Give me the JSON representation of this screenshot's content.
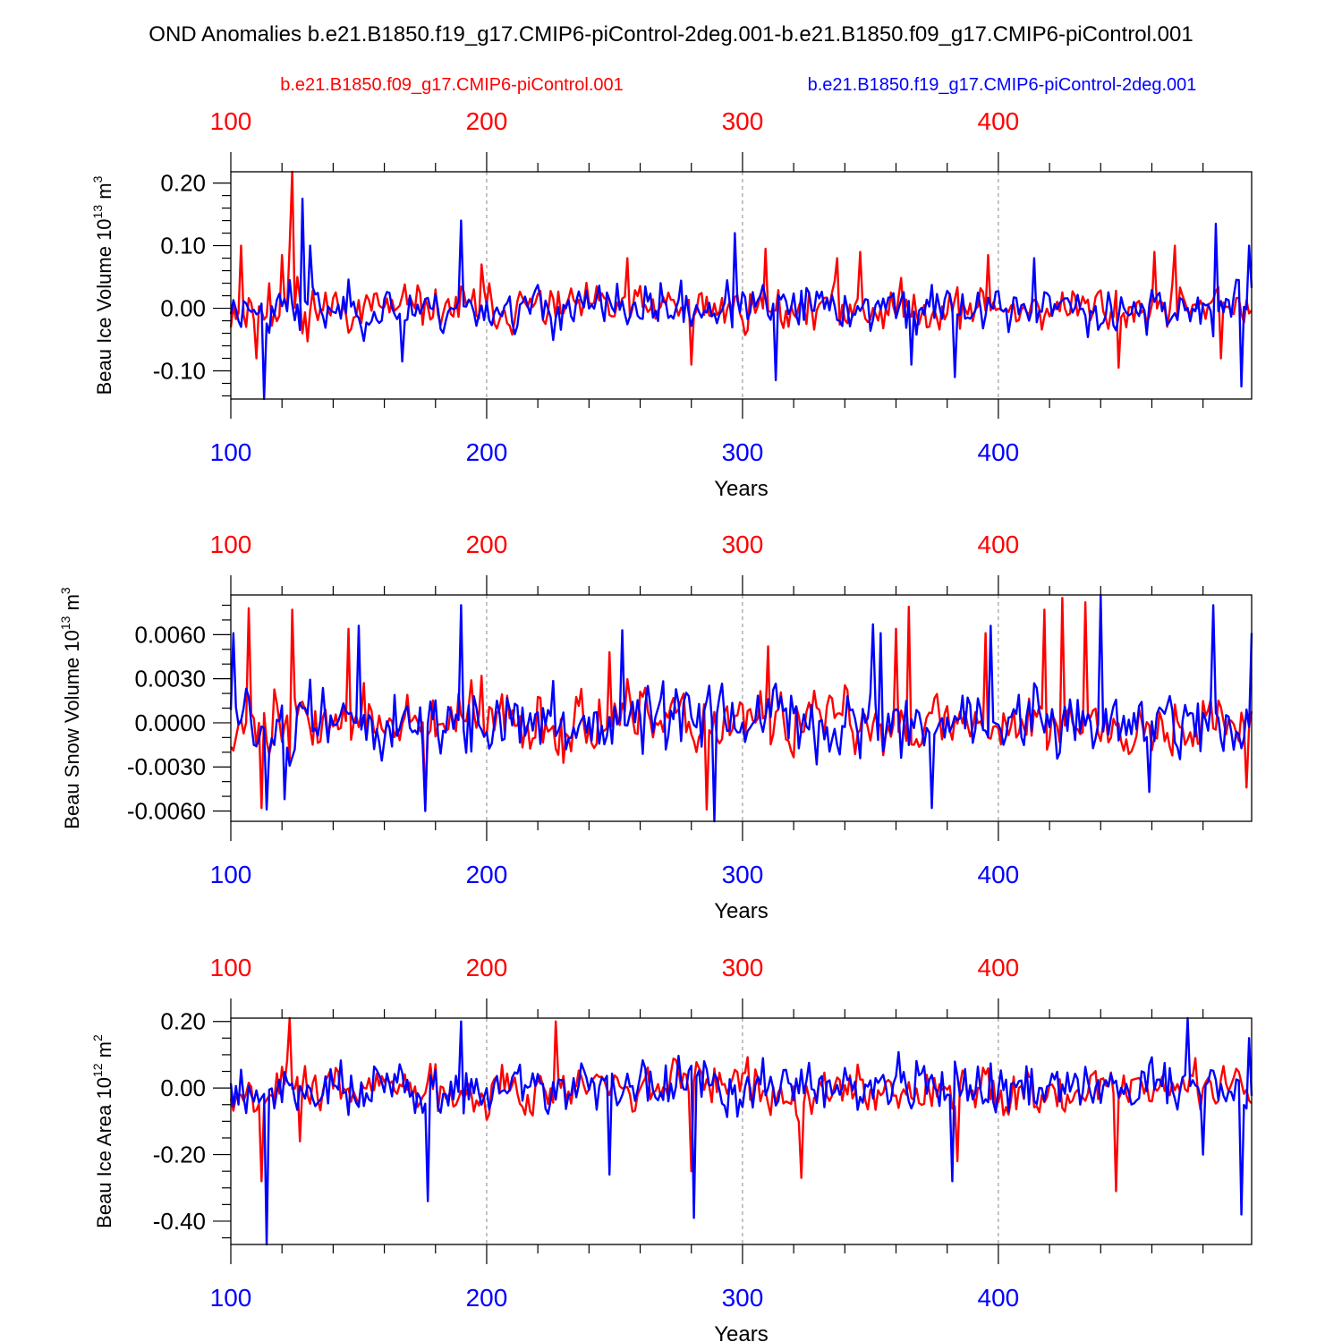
{
  "title": "OND Anomalies b.e21.B1850.f19_g17.CMIP6-piControl-2deg.001-b.e21.B1850.f09_g17.CMIP6-piControl.001",
  "legend": {
    "red_label": "b.e21.B1850.f09_g17.CMIP6-piControl.001",
    "blue_label": "b.e21.B1850.f19_g17.CMIP6-piControl-2deg.001"
  },
  "colors": {
    "red": "#ff0000",
    "blue": "#0000ff",
    "axis": "#000000",
    "grid": "#888888"
  },
  "chart_data": [
    {
      "type": "line",
      "ylabel": "Beau Ice Volume 10",
      "ylabel_exp": "13",
      "ylabel_unit": " m",
      "ylabel_unit_exp": "3",
      "xlabel": "Years",
      "xlim": [
        100,
        499
      ],
      "ylim": [
        -0.145,
        0.218
      ],
      "yticks": [
        -0.1,
        0.0,
        0.1,
        0.2
      ],
      "ytick_labels": [
        "-0.10",
        "0.00",
        "0.10",
        "0.20"
      ],
      "xticks": [
        100,
        200,
        300,
        400
      ],
      "xtick_labels": [
        "100",
        "200",
        "300",
        "400"
      ],
      "minor_x_step": 20,
      "minor_y_step": 0.02,
      "series": [
        {
          "name": "b.e21.B1850.f09_g17.CMIP6-piControl.001",
          "color": "red",
          "amp": 0.036,
          "lo": -0.1,
          "hi": 0.22,
          "seed": 11,
          "trend": "none",
          "spikes": [
            [
              104,
              0.1
            ],
            [
              110,
              -0.08
            ],
            [
              115,
              0.04
            ],
            [
              120,
              0.085
            ],
            [
              123,
              0.1
            ],
            [
              124,
              0.218
            ],
            [
              126,
              0.05
            ],
            [
              128,
              -0.04
            ],
            [
              165,
              0.0
            ],
            [
              198,
              0.07
            ],
            [
              255,
              0.08
            ],
            [
              280,
              -0.09
            ],
            [
              309,
              0.095
            ],
            [
              337,
              0.08
            ],
            [
              346,
              0.09
            ],
            [
              396,
              0.085
            ],
            [
              447,
              -0.095
            ],
            [
              461,
              0.09
            ],
            [
              469,
              0.1
            ],
            [
              487,
              -0.08
            ]
          ]
        },
        {
          "name": "b.e21.B1850.f19_g17.CMIP6-piControl-2deg.001",
          "color": "blue",
          "amp": 0.038,
          "lo": -0.145,
          "hi": 0.2,
          "seed": 23,
          "trend": "none",
          "spikes": [
            [
              113,
              -0.145
            ],
            [
              123,
              0.045
            ],
            [
              128,
              0.175
            ],
            [
              131,
              0.1
            ],
            [
              167,
              -0.085
            ],
            [
              190,
              0.14
            ],
            [
              297,
              0.12
            ],
            [
              313,
              -0.115
            ],
            [
              366,
              -0.09
            ],
            [
              383,
              -0.11
            ],
            [
              414,
              0.08
            ],
            [
              485,
              0.135
            ],
            [
              495,
              -0.125
            ],
            [
              498,
              0.1
            ]
          ]
        }
      ]
    },
    {
      "type": "line",
      "ylabel": "Beau Snow Volume 10",
      "ylabel_exp": "13",
      "ylabel_unit": " m",
      "ylabel_unit_exp": "3",
      "xlabel": "Years",
      "xlim": [
        100,
        499
      ],
      "ylim": [
        -0.0067,
        0.0087
      ],
      "yticks": [
        -0.006,
        -0.003,
        0.0,
        0.003,
        0.006
      ],
      "ytick_labels": [
        "-0.0060",
        "-0.0030",
        "0.0000",
        "0.0030",
        "0.0060"
      ],
      "xticks": [
        100,
        200,
        300,
        400
      ],
      "xtick_labels": [
        "100",
        "200",
        "300",
        "400"
      ],
      "minor_x_step": 20,
      "minor_y_step": 0.001,
      "series": [
        {
          "name": "b.e21.B1850.f09_g17.CMIP6-piControl.001",
          "color": "red",
          "amp": 0.0022,
          "lo": -0.0066,
          "hi": 0.0087,
          "seed": 37,
          "trend": "none",
          "spikes": [
            [
              107,
              0.0078
            ],
            [
              112,
              -0.0058
            ],
            [
              124,
              0.0077
            ],
            [
              146,
              0.0064
            ],
            [
              176,
              -0.0054
            ],
            [
              198,
              0.0032
            ],
            [
              248,
              0.0048
            ],
            [
              286,
              -0.0059
            ],
            [
              310,
              0.0052
            ],
            [
              360,
              0.0064
            ],
            [
              365,
              0.0079
            ],
            [
              395,
              0.0061
            ],
            [
              418,
              0.0077
            ],
            [
              425,
              0.0085
            ],
            [
              434,
              0.0082
            ],
            [
              497,
              -0.0044
            ]
          ]
        },
        {
          "name": "b.e21.B1850.f19_g17.CMIP6-piControl-2deg.001",
          "color": "blue",
          "amp": 0.0024,
          "lo": -0.0067,
          "hi": 0.0087,
          "seed": 51,
          "trend": "none",
          "spikes": [
            [
              101,
              0.0061
            ],
            [
              114,
              -0.0059
            ],
            [
              121,
              -0.0052
            ],
            [
              150,
              0.0066
            ],
            [
              176,
              -0.006
            ],
            [
              190,
              0.008
            ],
            [
              253,
              0.0063
            ],
            [
              289,
              -0.0067
            ],
            [
              351,
              0.0067
            ],
            [
              354,
              0.0061
            ],
            [
              374,
              -0.0058
            ],
            [
              397,
              0.0066
            ],
            [
              440,
              0.0087
            ],
            [
              459,
              -0.0047
            ],
            [
              484,
              0.008
            ],
            [
              499,
              0.0061
            ]
          ]
        }
      ]
    },
    {
      "type": "line",
      "ylabel": "Beau Ice Area 10",
      "ylabel_exp": "12",
      "ylabel_unit": " m",
      "ylabel_unit_exp": "2",
      "xlabel": "Years",
      "xlim": [
        100,
        499
      ],
      "ylim": [
        -0.47,
        0.21
      ],
      "yticks": [
        -0.4,
        -0.2,
        0.0,
        0.2
      ],
      "ytick_labels": [
        "-0.40",
        "-0.20",
        "0.00",
        "0.20"
      ],
      "xticks": [
        100,
        200,
        300,
        400
      ],
      "xtick_labels": [
        "100",
        "200",
        "300",
        "400"
      ],
      "minor_x_step": 20,
      "minor_y_step": 0.05,
      "series": [
        {
          "name": "b.e21.B1850.f09_g17.CMIP6-piControl.001",
          "color": "red",
          "amp": 0.075,
          "lo": -0.31,
          "hi": 0.21,
          "seed": 67,
          "trend": "none",
          "spikes": [
            [
              112,
              -0.28
            ],
            [
              123,
              0.21
            ],
            [
              127,
              -0.16
            ],
            [
              227,
              0.2
            ],
            [
              280,
              -0.25
            ],
            [
              323,
              -0.27
            ],
            [
              384,
              -0.22
            ],
            [
              446,
              -0.31
            ]
          ]
        },
        {
          "name": "b.e21.B1850.f19_g17.CMIP6-piControl-2deg.001",
          "color": "blue",
          "amp": 0.085,
          "lo": -0.47,
          "hi": 0.21,
          "seed": 79,
          "trend": "none",
          "spikes": [
            [
              114,
              -0.47
            ],
            [
              177,
              -0.34
            ],
            [
              190,
              0.2
            ],
            [
              248,
              -0.26
            ],
            [
              281,
              -0.39
            ],
            [
              382,
              -0.28
            ],
            [
              474,
              0.21
            ],
            [
              480,
              -0.2
            ],
            [
              495,
              -0.38
            ],
            [
              498,
              0.15
            ]
          ]
        }
      ]
    }
  ]
}
